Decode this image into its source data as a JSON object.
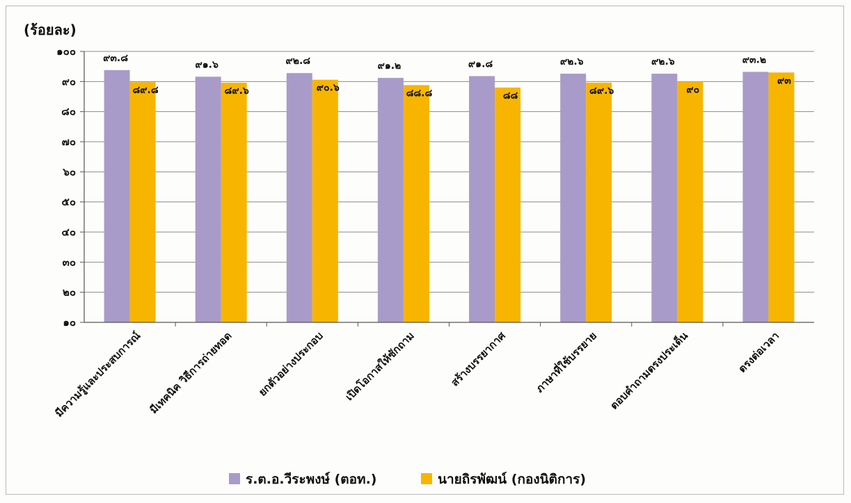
{
  "chart_data": {
    "type": "bar",
    "unit_label": "(ร้อยละ)",
    "categories": [
      "มีความรู้และประสบการณ์",
      "มีเทคนิค วิธีการถ่ายทอด",
      "ยกตัวอย่างประกอบ",
      "เปิดโอกาสให้ซักถาม",
      "สร้างบรรยากาศ",
      "ภาษาที่ใช้บรรยาย",
      "ตอบคำถามตรงประเด็น",
      "ตรงต่อเวลา"
    ],
    "series": [
      {
        "name": "ร.ต.อ.วีระพงษ์ (ตอท.)",
        "color": "#a99bc9",
        "values": [
          93.8,
          91.6,
          92.8,
          91.2,
          91.8,
          92.6,
          92.6,
          93.2
        ],
        "labels": [
          "๙๓.๘",
          "๙๑.๖",
          "๙๒.๘",
          "๙๑.๒",
          "๙๑.๘",
          "๙๒.๖",
          "๙๒.๖",
          "๙๓.๒"
        ]
      },
      {
        "name": "นายถิรพัฒน์ (กองนิติการ)",
        "color": "#f7b500",
        "values": [
          89.8,
          89.6,
          90.6,
          88.8,
          88,
          89.6,
          90,
          93
        ],
        "labels": [
          "๘๙.๘",
          "๘๙.๖",
          "๙๐.๖",
          "๘๘.๘",
          "๘๘",
          "๘๙.๖",
          "๙๐",
          "๙๓"
        ]
      }
    ],
    "yticks": [
      10,
      20,
      30,
      40,
      50,
      60,
      70,
      80,
      90,
      100
    ],
    "ytick_labels": [
      "๑๐",
      "๒๐",
      "๓๐",
      "๔๐",
      "๕๐",
      "๖๐",
      "๗๐",
      "๘๐",
      "๙๐",
      "๑๐๐"
    ],
    "ylim": [
      10,
      100
    ],
    "grid": true,
    "legend_position": "bottom"
  }
}
